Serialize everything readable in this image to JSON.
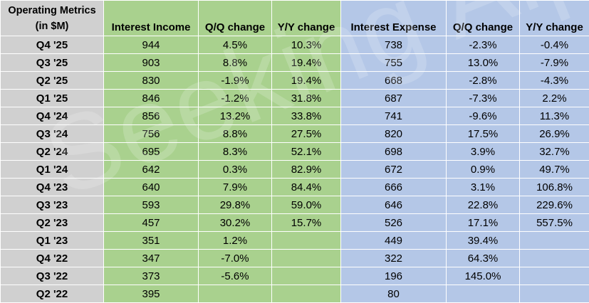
{
  "table": {
    "header": {
      "metric_line1": "Operating Metrics",
      "metric_line2": "(in $M)",
      "columns": [
        "Interest Income",
        "Q/Q change",
        "Y/Y change",
        "Interest Expense",
        "Q/Q change",
        "Y/Y change"
      ]
    },
    "rows": [
      {
        "label": "Q4 '25",
        "cells": [
          "944",
          "4.5%",
          "10.3%",
          "738",
          "-2.3%",
          "-0.4%"
        ]
      },
      {
        "label": "Q3 '25",
        "cells": [
          "903",
          "8.8%",
          "19.4%",
          "755",
          "13.0%",
          "-7.9%"
        ]
      },
      {
        "label": "Q2 '25",
        "cells": [
          "830",
          "-1.9%",
          "19.4%",
          "668",
          "-2.8%",
          "-4.3%"
        ]
      },
      {
        "label": "Q1 '25",
        "cells": [
          "846",
          "-1.2%",
          "31.8%",
          "687",
          "-7.3%",
          "2.2%"
        ]
      },
      {
        "label": "Q4 '24",
        "cells": [
          "856",
          "13.2%",
          "33.8%",
          "741",
          "-9.6%",
          "11.3%"
        ]
      },
      {
        "label": "Q3 '24",
        "cells": [
          "756",
          "8.8%",
          "27.5%",
          "820",
          "17.5%",
          "26.9%"
        ]
      },
      {
        "label": "Q2 '24",
        "cells": [
          "695",
          "8.3%",
          "52.1%",
          "698",
          "3.9%",
          "32.7%"
        ]
      },
      {
        "label": "Q1 '24",
        "cells": [
          "642",
          "0.3%",
          "82.9%",
          "672",
          "0.9%",
          "49.7%"
        ]
      },
      {
        "label": "Q4 '23",
        "cells": [
          "640",
          "7.9%",
          "84.4%",
          "666",
          "3.1%",
          "106.8%"
        ]
      },
      {
        "label": "Q3 '23",
        "cells": [
          "593",
          "29.8%",
          "59.0%",
          "646",
          "22.8%",
          "229.6%"
        ]
      },
      {
        "label": "Q2 '23",
        "cells": [
          "457",
          "30.2%",
          "15.7%",
          "526",
          "17.1%",
          "557.5%"
        ]
      },
      {
        "label": "Q1 '23",
        "cells": [
          "351",
          "1.2%",
          "",
          "449",
          "39.4%",
          ""
        ]
      },
      {
        "label": "Q4 '22",
        "cells": [
          "347",
          "-7.0%",
          "",
          "322",
          "64.3%",
          ""
        ]
      },
      {
        "label": "Q3 '22",
        "cells": [
          "373",
          "-5.6%",
          "",
          "196",
          "145.0%",
          ""
        ]
      },
      {
        "label": "Q2 '22",
        "cells": [
          "395",
          "",
          "",
          "80",
          "",
          ""
        ]
      }
    ]
  },
  "watermark": "Seeking Alpha",
  "colors": {
    "label_bg": "#d0d0d0",
    "income_bg": "#a9d18e",
    "expense_bg": "#b4c7e7"
  }
}
